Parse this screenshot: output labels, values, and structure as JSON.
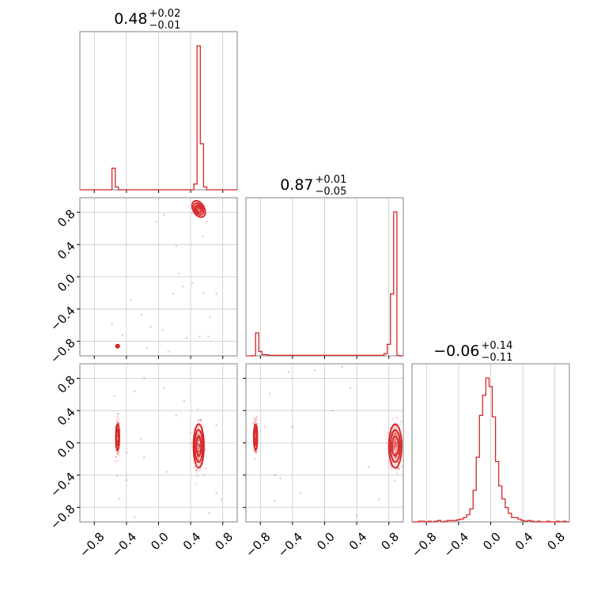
{
  "chart_data": {
    "type": "corner",
    "color": "#d62728",
    "parameters": [
      {
        "median": "0.48",
        "plus": "+0.02",
        "minus": "−0.01"
      },
      {
        "median": "0.87",
        "plus": "+0.01",
        "minus": "−0.05"
      },
      {
        "median": "−0.06",
        "plus": "+0.14",
        "minus": "−0.11"
      }
    ],
    "axis_ranges": [
      [
        -0.98,
        0.98
      ],
      [
        -0.98,
        0.98
      ],
      [
        -0.98,
        0.98
      ]
    ],
    "tick_values": [
      -0.8,
      -0.4,
      0.0,
      0.4,
      0.8
    ],
    "tick_labels": [
      "−0.8",
      "−0.4",
      "0.0",
      "0.4",
      "0.8"
    ],
    "grid": true,
    "histograms": [
      {
        "parameter": 0,
        "x_range": [
          -0.98,
          0.98
        ],
        "bin_edges": [
          -0.62,
          -0.58,
          -0.54,
          -0.5,
          0.44,
          0.48,
          0.52,
          0.56,
          0.6
        ],
        "counts": [
          0,
          0.15,
          0.02,
          0,
          0.04,
          1.0,
          0.32,
          0.02
        ]
      },
      {
        "parameter": 1,
        "x_range": [
          -0.98,
          0.98
        ],
        "bin_edges": [
          -0.9,
          -0.86,
          -0.82,
          -0.78,
          -0.7,
          0.74,
          0.78,
          0.82,
          0.86,
          0.9,
          0.94
        ],
        "counts": [
          0.001,
          0.16,
          0.03,
          0.008,
          0.004,
          0.015,
          0.08,
          0.43,
          1.0,
          0.003
        ]
      },
      {
        "parameter": 2,
        "x_range": [
          -0.98,
          0.98
        ],
        "bin_edges": [
          -0.9,
          -0.86,
          -0.82,
          -0.78,
          -0.74,
          -0.7,
          -0.66,
          -0.62,
          -0.58,
          -0.54,
          -0.5,
          -0.46,
          -0.42,
          -0.38,
          -0.34,
          -0.3,
          -0.26,
          -0.22,
          -0.18,
          -0.14,
          -0.1,
          -0.06,
          -0.02,
          0.02,
          0.06,
          0.1,
          0.14,
          0.18,
          0.22,
          0.26,
          0.3,
          0.34,
          0.38,
          0.42,
          0.46,
          0.5,
          0.54,
          0.58,
          0.62,
          0.66,
          0.7,
          0.74,
          0.78,
          0.82,
          0.86,
          0.9,
          0.94
        ],
        "counts": [
          0.005,
          0.005,
          0,
          0.005,
          0,
          0.005,
          0.01,
          0,
          0.005,
          0.01,
          0.01,
          0.01,
          0.015,
          0.02,
          0.03,
          0.05,
          0.09,
          0.22,
          0.45,
          0.74,
          0.88,
          1.0,
          0.94,
          0.73,
          0.42,
          0.25,
          0.16,
          0.1,
          0.06,
          0.03,
          0.03,
          0.02,
          0.01,
          0.005,
          0.01,
          0.005,
          0,
          0.005,
          0,
          0,
          0.005,
          0,
          0,
          0.005,
          0,
          0.005
        ]
      }
    ],
    "scatter_panels": [
      {
        "x_parameter": 0,
        "y_parameter": 1,
        "clusters": [
          {
            "x": 0.5,
            "y": 0.84,
            "sx": 0.025,
            "sy": 0.03,
            "n": 110
          },
          {
            "x": -0.51,
            "y": -0.86,
            "sx": 0.012,
            "sy": 0.012,
            "n": 45
          }
        ],
        "outliers": [
          [
            0.07,
            0.77
          ],
          [
            -0.03,
            0.68
          ],
          [
            0.22,
            0.38
          ],
          [
            0.25,
            0.04
          ],
          [
            0.18,
            -0.21
          ],
          [
            0.42,
            -0.08
          ],
          [
            0.56,
            -0.2
          ],
          [
            -0.35,
            -0.29
          ],
          [
            -0.21,
            -0.47
          ],
          [
            -0.1,
            -0.62
          ],
          [
            0.05,
            -0.66
          ],
          [
            0.35,
            -0.76
          ],
          [
            0.51,
            -0.74
          ],
          [
            0.64,
            -0.5
          ],
          [
            0.72,
            -0.21
          ],
          [
            -0.58,
            -0.58
          ],
          [
            -0.45,
            -0.72
          ],
          [
            0.3,
            -0.12
          ],
          [
            0.62,
            -0.74
          ],
          [
            -0.14,
            -0.88
          ],
          [
            0.12,
            -0.93
          ],
          [
            0.6,
            0.68
          ],
          [
            0.42,
            0.78
          ],
          [
            0.55,
            0.5
          ]
        ],
        "contours": [
          {
            "x": 0.5,
            "y": 0.84,
            "rx": 0.03,
            "ry": 0.05,
            "rot": -30
          },
          {
            "x": 0.5,
            "y": 0.84,
            "rx": 0.05,
            "ry": 0.08,
            "rot": -30
          },
          {
            "x": 0.5,
            "y": 0.84,
            "rx": 0.07,
            "ry": 0.11,
            "rot": -30
          },
          {
            "x": -0.51,
            "y": -0.86,
            "rx": 0.02,
            "ry": 0.02,
            "rot": 0
          }
        ]
      },
      {
        "x_parameter": 0,
        "y_parameter": 2,
        "clusters": [
          {
            "x": 0.5,
            "y": -0.04,
            "sx": 0.03,
            "sy": 0.14,
            "n": 260
          },
          {
            "x": -0.51,
            "y": 0.07,
            "sx": 0.012,
            "sy": 0.12,
            "n": 110
          }
        ],
        "outliers": [
          [
            -0.18,
            0.8
          ],
          [
            0.07,
            0.68
          ],
          [
            -0.3,
            0.64
          ],
          [
            0.22,
            0.34
          ],
          [
            -0.4,
            -0.12
          ],
          [
            -0.18,
            -0.18
          ],
          [
            0.1,
            -0.36
          ],
          [
            -0.4,
            -0.46
          ],
          [
            -0.49,
            -0.69
          ],
          [
            -0.3,
            -0.92
          ],
          [
            0.78,
            -0.7
          ],
          [
            0.63,
            -0.87
          ],
          [
            0.32,
            0.52
          ],
          [
            0.72,
            -0.62
          ],
          [
            -0.55,
            0.58
          ],
          [
            0.72,
            0.22
          ],
          [
            -0.22,
            0.05
          ]
        ],
        "contours": [
          {
            "x": 0.5,
            "y": -0.04,
            "rx": 0.03,
            "ry": 0.12,
            "rot": 0
          },
          {
            "x": 0.5,
            "y": -0.04,
            "rx": 0.05,
            "ry": 0.2,
            "rot": 0
          },
          {
            "x": 0.5,
            "y": -0.04,
            "rx": 0.065,
            "ry": 0.27,
            "rot": 0
          },
          {
            "x": -0.51,
            "y": 0.07,
            "rx": 0.015,
            "ry": 0.1,
            "rot": 0
          },
          {
            "x": -0.51,
            "y": 0.07,
            "rx": 0.022,
            "ry": 0.16,
            "rot": 0
          }
        ]
      },
      {
        "x_parameter": 1,
        "y_parameter": 2,
        "clusters": [
          {
            "x": 0.88,
            "y": -0.04,
            "sx": 0.035,
            "sy": 0.15,
            "n": 260
          },
          {
            "x": -0.86,
            "y": 0.07,
            "sx": 0.012,
            "sy": 0.12,
            "n": 110
          }
        ],
        "outliers": [
          [
            -0.45,
            0.88
          ],
          [
            -0.12,
            0.9
          ],
          [
            0.22,
            0.94
          ],
          [
            -0.68,
            0.61
          ],
          [
            0.1,
            0.4
          ],
          [
            -0.62,
            -0.4
          ],
          [
            -0.3,
            -0.62
          ],
          [
            -0.55,
            -0.44
          ],
          [
            -0.62,
            -0.72
          ],
          [
            0.4,
            -0.9
          ],
          [
            0.68,
            -0.7
          ],
          [
            0.55,
            -0.3
          ],
          [
            -0.74,
            0.2
          ],
          [
            0.32,
            0.68
          ],
          [
            -0.4,
            0.2
          ]
        ],
        "contours": [
          {
            "x": 0.88,
            "y": -0.04,
            "rx": 0.04,
            "ry": 0.12,
            "rot": 0
          },
          {
            "x": 0.88,
            "y": -0.04,
            "rx": 0.06,
            "ry": 0.2,
            "rot": 0
          },
          {
            "x": 0.88,
            "y": -0.04,
            "rx": 0.08,
            "ry": 0.27,
            "rot": 0
          },
          {
            "x": -0.86,
            "y": 0.07,
            "rx": 0.015,
            "ry": 0.1,
            "rot": 0
          },
          {
            "x": -0.86,
            "y": 0.07,
            "rx": 0.022,
            "ry": 0.16,
            "rot": 0
          }
        ]
      }
    ]
  }
}
